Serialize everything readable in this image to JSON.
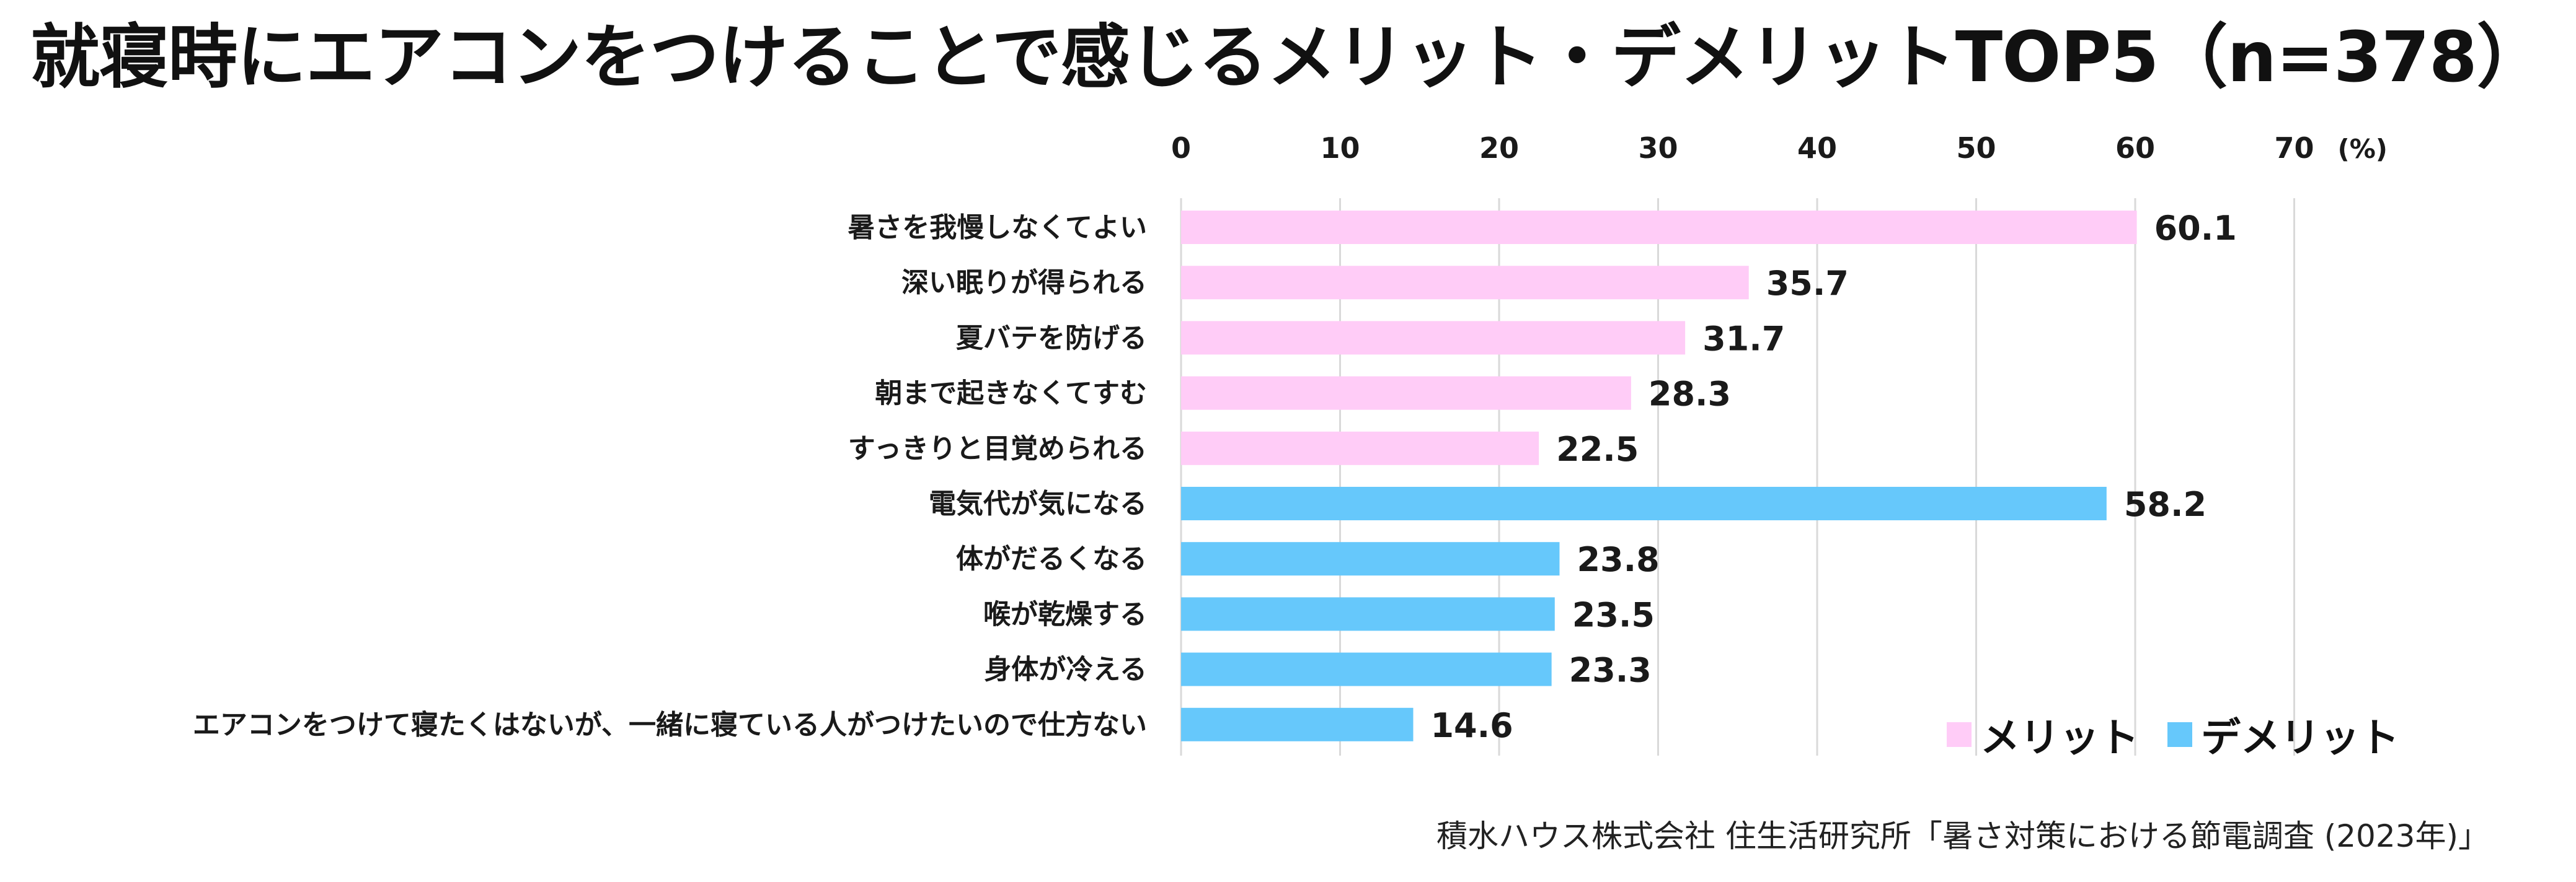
{
  "title": "就寝時にエアコンをつけることで感じるメリット・デメリットTOP5（n=378）",
  "source": "積水ハウス株式会社 住生活研究所「暑さ対策における節電調査 (2023年)」",
  "colors": {
    "merit": "#ffccf7",
    "demerit": "#66c8fb",
    "grid": "#d9d9d9"
  },
  "chart_data": {
    "type": "bar",
    "orientation": "horizontal",
    "title": "就寝時にエアコンをつけることで感じるメリット・デメリットTOP5（n=378）",
    "unit_label": "(%)",
    "xlim": [
      0,
      70
    ],
    "ticks": [
      "0",
      "10",
      "20",
      "30",
      "40",
      "50",
      "60",
      "70"
    ],
    "tick_values": [
      0,
      10,
      20,
      30,
      40,
      50,
      60,
      70
    ],
    "grid": true,
    "legend_position": "bottom-right",
    "series": [
      {
        "name": "メリット",
        "color_key": "merit"
      },
      {
        "name": "デメリット",
        "color_key": "demerit"
      }
    ],
    "bars": [
      {
        "category": "暑さを我慢しなくてよい",
        "value": 60.1,
        "label": "60.1",
        "series": "メリット"
      },
      {
        "category": "深い眠りが得られる",
        "value": 35.7,
        "label": "35.7",
        "series": "メリット"
      },
      {
        "category": "夏バテを防げる",
        "value": 31.7,
        "label": "31.7",
        "series": "メリット"
      },
      {
        "category": "朝まで起きなくてすむ",
        "value": 28.3,
        "label": "28.3",
        "series": "メリット"
      },
      {
        "category": "すっきりと目覚められる",
        "value": 22.5,
        "label": "22.5",
        "series": "メリット"
      },
      {
        "category": "電気代が気になる",
        "value": 58.2,
        "label": "58.2",
        "series": "デメリット"
      },
      {
        "category": "体がだるくなる",
        "value": 23.8,
        "label": "23.8",
        "series": "デメリット"
      },
      {
        "category": "喉が乾燥する",
        "value": 23.5,
        "label": "23.5",
        "series": "デメリット"
      },
      {
        "category": "身体が冷える",
        "value": 23.3,
        "label": "23.3",
        "series": "デメリット"
      },
      {
        "category": "エアコンをつけて寝たくはないが、一緒に寝ている人がつけたいので仕方ない",
        "value": 14.6,
        "label": "14.6",
        "series": "デメリット"
      }
    ]
  },
  "legend": {
    "merit_label": "メリット",
    "demerit_label": "デメリット"
  }
}
